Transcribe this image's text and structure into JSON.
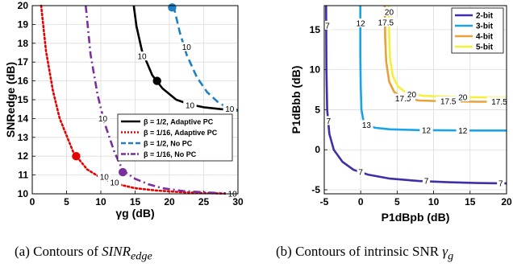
{
  "captions": [
    {
      "label": "(a)",
      "text": "Contours of ",
      "math": "SINR",
      "sub": "edge"
    },
    {
      "label": "(b)",
      "text": "Contours of intrinsic SNR ",
      "math": "γ",
      "sub": "g"
    }
  ],
  "colors": {
    "black": "#000000",
    "red": "#e60000",
    "blue": "#1f7fc0",
    "purple": "#7b2f9e",
    "indigo": "#3d2fa8",
    "cyan": "#1aa3e8",
    "orange": "#e8a23a",
    "yellow": "#f5f03a"
  },
  "chart_data": [
    {
      "type": "line",
      "title": "",
      "xlabel": "γg (dB)",
      "ylabel": "SNRedge (dB)",
      "xlim": [
        0,
        30
      ],
      "ylim": [
        10,
        20
      ],
      "xticks": [
        "0",
        "5",
        "10",
        "15",
        "20",
        "25",
        "30"
      ],
      "yticks": [
        "10",
        "11",
        "12",
        "13",
        "14",
        "15",
        "16",
        "17",
        "18",
        "19",
        "20"
      ],
      "grid": true,
      "legend_position": "right",
      "series": [
        {
          "name": "β = 1/2, Adaptive PC",
          "style": "solid",
          "color": "#000000",
          "x": [
            14.8,
            15.2,
            16.0,
            17.5,
            19.0,
            21.0,
            23.0,
            25.0,
            27.5,
            30.0
          ],
          "y": [
            20.0,
            18.9,
            17.6,
            16.3,
            15.6,
            15.0,
            14.75,
            14.6,
            14.5,
            14.45
          ],
          "contour_label": "10",
          "marker": {
            "x": 18.2,
            "y": 16.0
          }
        },
        {
          "name": "β = 1/16, Adaptive PC",
          "style": "dotted",
          "color": "#e60000",
          "x": [
            1.3,
            2.0,
            3.0,
            4.0,
            6.0,
            8.0,
            10.0,
            12.0,
            15.0,
            18.0,
            22.0,
            26.0,
            30.0
          ],
          "y": [
            20.0,
            17.6,
            15.5,
            14.0,
            12.2,
            11.3,
            10.85,
            10.55,
            10.3,
            10.18,
            10.08,
            10.03,
            10.0
          ],
          "contour_label": "10",
          "marker": {
            "x": 6.4,
            "y": 12.0
          }
        },
        {
          "name": "β = 1/2, No PC",
          "style": "dashed",
          "color": "#1f7fc0",
          "x": [
            20.6,
            21.5,
            22.5,
            24.0,
            25.5,
            27.0,
            28.5,
            30.0
          ],
          "y": [
            20.0,
            18.6,
            17.4,
            16.2,
            15.4,
            14.9,
            14.55,
            14.4
          ],
          "contour_label": "10",
          "marker": {
            "x": 20.4,
            "y": 19.9
          }
        },
        {
          "name": "β = 1/16, No PC",
          "style": "dashdot",
          "color": "#7b2f9e",
          "x": [
            7.8,
            8.5,
            9.5,
            10.5,
            12.0,
            13.2,
            15.0,
            17.0,
            19.0,
            22.0,
            25.0,
            28.0,
            30.0
          ],
          "y": [
            20.0,
            17.4,
            15.3,
            13.8,
            12.2,
            11.25,
            10.8,
            10.5,
            10.3,
            10.15,
            10.08,
            10.03,
            10.0
          ],
          "contour_label": "10",
          "marker": {
            "x": 13.2,
            "y": 11.15
          }
        }
      ]
    },
    {
      "type": "line",
      "title": "",
      "xlabel": "P1dBpb (dB)",
      "ylabel": "P1dBbb (dB)",
      "xlim": [
        -5,
        20
      ],
      "ylim": [
        -5.5,
        18
      ],
      "xticks": [
        "-5",
        "0",
        "5",
        "10",
        "15",
        "20"
      ],
      "yticks": [
        "-5",
        "0",
        "5",
        "10",
        "15"
      ],
      "grid": true,
      "legend_position": "top-right",
      "series": [
        {
          "name": "2-bit",
          "color": "#3d2fa8",
          "x": [
            -4.75,
            -4.7,
            -4.6,
            -4.3,
            -3.7,
            -2.5,
            -1.0,
            1.0,
            4.0,
            8.0,
            12.0,
            16.0,
            20.0
          ],
          "y": [
            18.0,
            10.0,
            5.0,
            2.0,
            0.0,
            -1.5,
            -2.5,
            -3.1,
            -3.6,
            -3.9,
            -4.05,
            -4.15,
            -4.2
          ],
          "contour_labels": [
            "7",
            "7",
            "7",
            "7",
            "7"
          ]
        },
        {
          "name": "3-bit",
          "color": "#1aa3e8",
          "x": [
            -0.05,
            -0.05,
            0.0,
            0.1,
            0.4,
            1.0,
            2.0,
            4.0,
            8.0,
            12.0,
            16.0,
            20.0
          ],
          "y": [
            18.0,
            12.0,
            8.0,
            5.0,
            3.5,
            3.0,
            2.75,
            2.55,
            2.45,
            2.42,
            2.4,
            2.4
          ],
          "contour_labels": [
            "12",
            "13",
            "12",
            "12"
          ]
        },
        {
          "name": "4-bit",
          "color": "#e8a23a",
          "x": [
            3.3,
            3.35,
            3.5,
            3.9,
            4.6,
            5.8,
            8.0,
            12.0,
            16.0,
            20.0
          ],
          "y": [
            18.0,
            14.0,
            11.0,
            8.5,
            7.2,
            6.5,
            6.15,
            6.05,
            6.0,
            6.0
          ],
          "contour_labels": [
            "17.5",
            "17.5",
            "17.5",
            "17.5"
          ]
        },
        {
          "name": "5-bit",
          "color": "#f5f03a",
          "x": [
            3.85,
            3.9,
            4.0,
            4.4,
            5.1,
            6.3,
            8.5,
            12.0,
            16.0,
            20.0
          ],
          "y": [
            18.0,
            14.5,
            11.5,
            9.2,
            7.9,
            7.1,
            6.75,
            6.6,
            6.55,
            6.55
          ],
          "contour_labels": [
            "20",
            "20",
            "20"
          ]
        }
      ]
    }
  ]
}
